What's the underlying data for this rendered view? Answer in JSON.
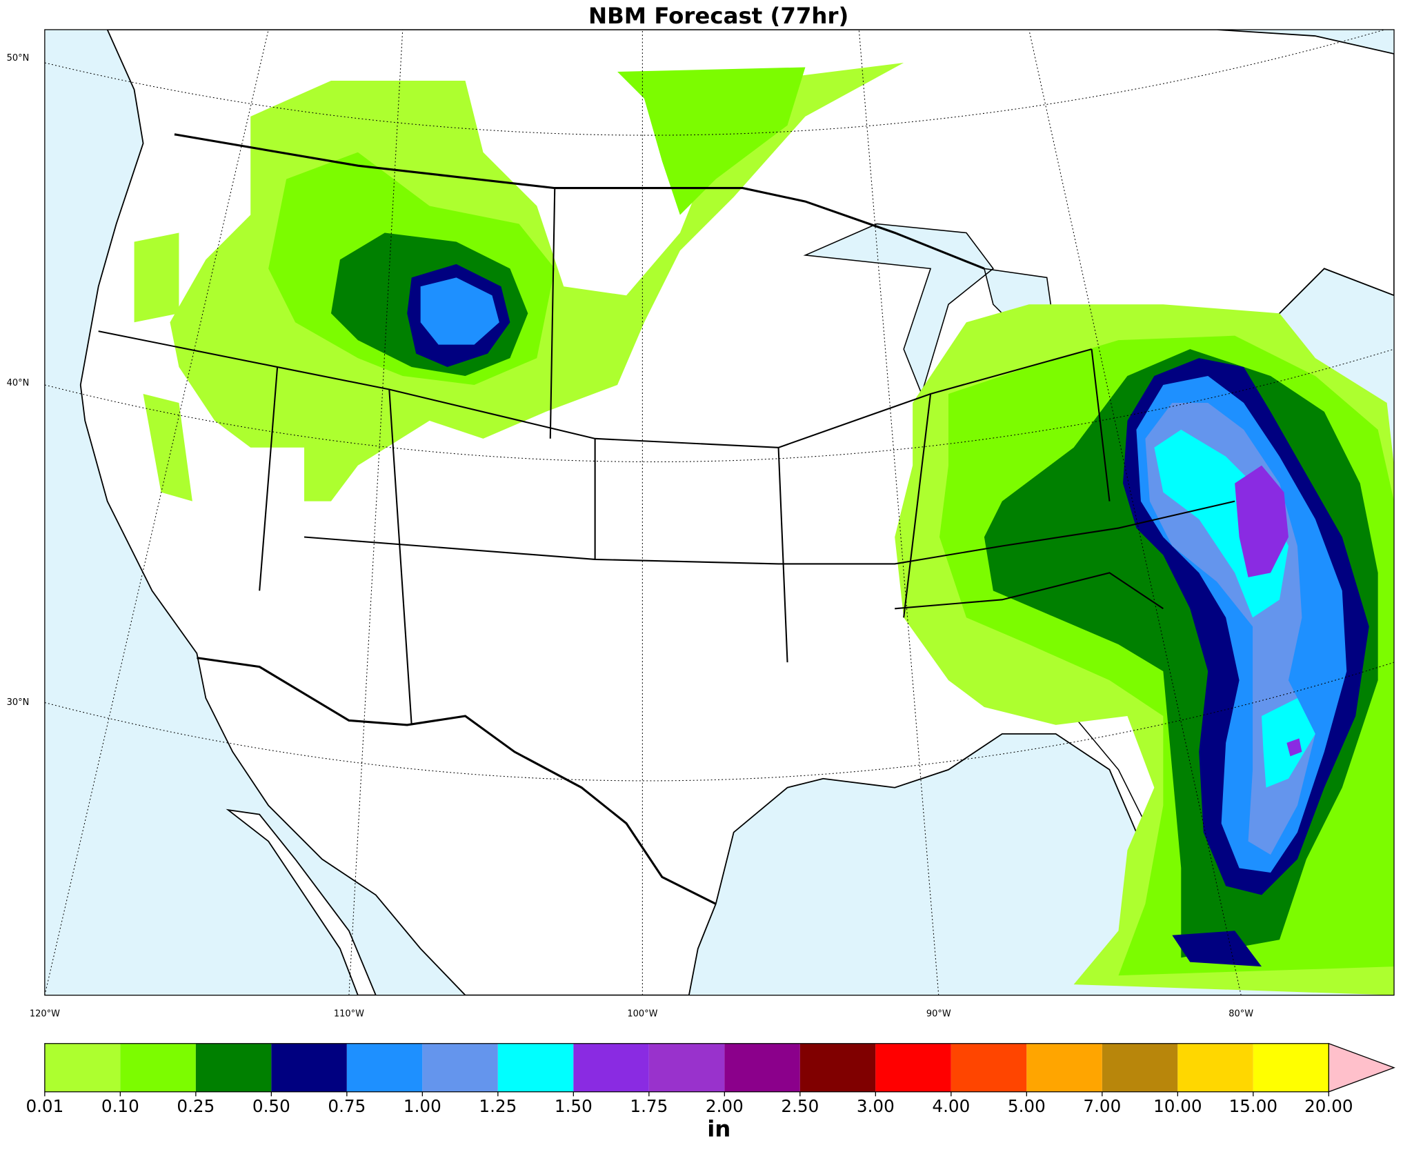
{
  "title": "NBM Forecast (77hr)",
  "map": {
    "lat_labels": [
      "50°N",
      "40°N",
      "30°N"
    ],
    "lon_labels": [
      "120°W",
      "110°W",
      "100°W",
      "90°W",
      "80°W"
    ]
  },
  "colorbar": {
    "label": "in",
    "boundaries": [
      {
        "value": 0.01,
        "label": "0.01"
      },
      {
        "value": 0.1,
        "label": "0.10"
      },
      {
        "value": 0.25,
        "label": "0.25"
      },
      {
        "value": 0.5,
        "label": "0.50"
      },
      {
        "value": 0.75,
        "label": "0.75"
      },
      {
        "value": 1,
        "label": "1.00"
      },
      {
        "value": 1.25,
        "label": "1.25"
      },
      {
        "value": 1.5,
        "label": "1.50"
      },
      {
        "value": 1.75,
        "label": "1.75"
      },
      {
        "value": 2,
        "label": "2.00"
      },
      {
        "value": 2.5,
        "label": "2.50"
      },
      {
        "value": 3,
        "label": "3.00"
      },
      {
        "value": 4,
        "label": "4.00"
      },
      {
        "value": 5,
        "label": "5.00"
      },
      {
        "value": 7,
        "label": "7.00"
      },
      {
        "value": 10,
        "label": "10.00"
      },
      {
        "value": 15,
        "label": "15.00"
      },
      {
        "value": 20,
        "label": "20.00"
      }
    ],
    "colors": [
      "#adff2f",
      "#7cfc00",
      "#008000",
      "#000080",
      "#1e90ff",
      "#6495ed",
      "#00ffff",
      "#8a2be2",
      "#9932cc",
      "#8b008b",
      "#800000",
      "#ff0000",
      "#ff4500",
      "#ffa500",
      "#b8860b",
      "#ffd700",
      "#ffff00"
    ],
    "extend_color": "#ffc0cb"
  }
}
